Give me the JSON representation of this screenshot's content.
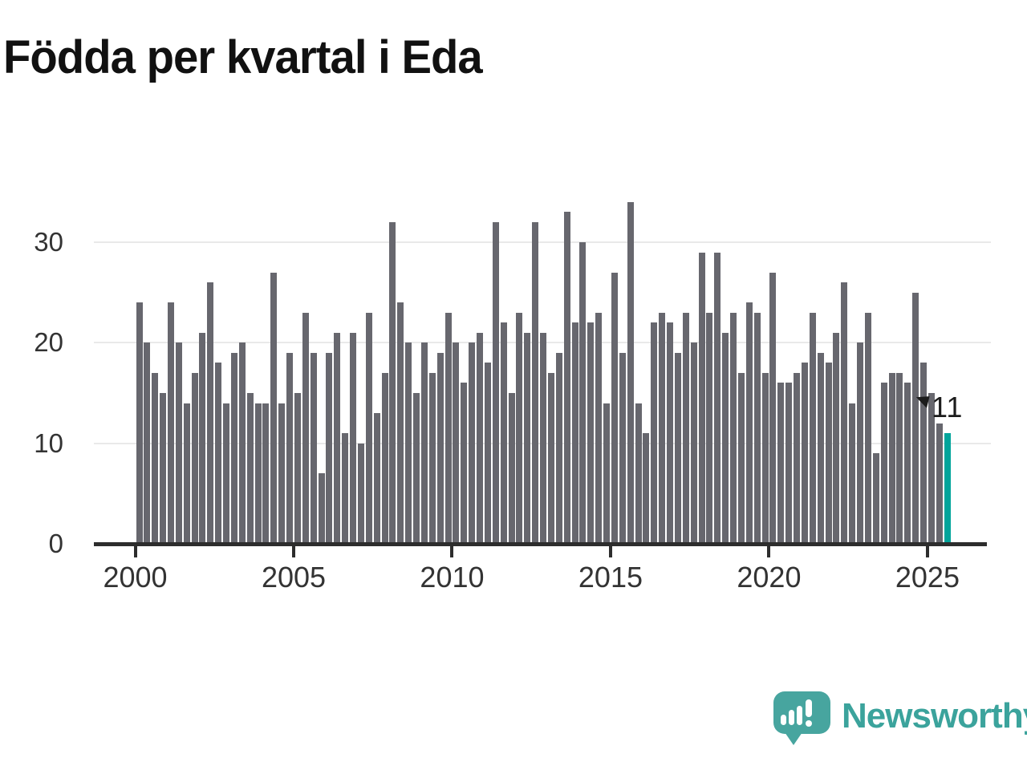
{
  "chart_data": {
    "type": "bar",
    "title": "Födda per kvartal i Eda",
    "x_tick_labels": [
      "2000",
      "2005",
      "2010",
      "2015",
      "2020",
      "2025"
    ],
    "y_ticks": [
      0,
      10,
      20,
      30
    ],
    "y_tick_labels": [
      "0",
      "10",
      "20",
      "30"
    ],
    "ylim": [
      0,
      36
    ],
    "grid": "horizontal",
    "legend": "none",
    "start_period": "2000-Q1",
    "end_period": "2025-Q3",
    "quarters_per_year": 4,
    "values": [
      24,
      20,
      17,
      15,
      24,
      20,
      14,
      17,
      21,
      26,
      18,
      14,
      19,
      20,
      15,
      14,
      14,
      27,
      14,
      19,
      15,
      23,
      19,
      7,
      19,
      21,
      11,
      21,
      10,
      23,
      13,
      17,
      32,
      24,
      20,
      15,
      20,
      17,
      19,
      23,
      20,
      16,
      20,
      21,
      18,
      32,
      22,
      15,
      23,
      21,
      32,
      21,
      17,
      19,
      33,
      22,
      30,
      22,
      23,
      14,
      27,
      19,
      34,
      14,
      11,
      22,
      23,
      22,
      19,
      23,
      20,
      29,
      23,
      29,
      21,
      23,
      17,
      24,
      23,
      17,
      27,
      16,
      16,
      17,
      18,
      23,
      19,
      18,
      21,
      26,
      14,
      20,
      23,
      9,
      16,
      17,
      17,
      16,
      25,
      18,
      15,
      12,
      11
    ],
    "annotation_label": "11",
    "highlighted_last_value": 11,
    "bar_color": "#67676e",
    "highlight_color": "#00a49b",
    "axis_color": "#2d2d2d",
    "grid_color": "#e9e9e9",
    "label_color": "#333333"
  },
  "branding": {
    "wordmark": "Newsworthy",
    "logo_icon": "newsworthy-speech-bubble-chart-icon",
    "brand_color": "#3ba39c"
  }
}
